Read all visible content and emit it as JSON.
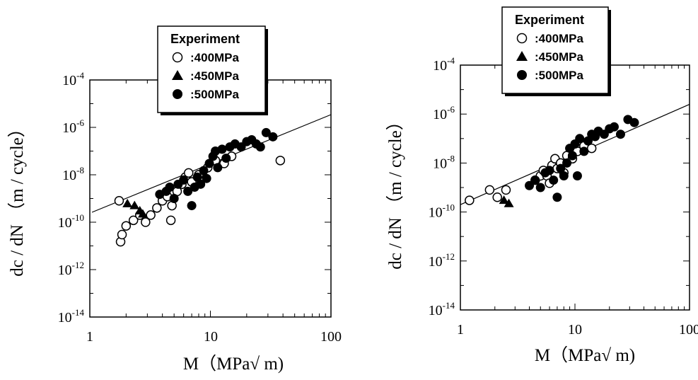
{
  "chart_data": [
    {
      "type": "scatter",
      "xlabel": "M（MPa√ m)",
      "ylabel": "dc / dN （m / cycle）",
      "x_scale": "log",
      "y_scale": "log",
      "xlim": [
        1,
        100
      ],
      "ylim": [
        1e-14,
        0.0001
      ],
      "x_ticks": [
        "1",
        "10",
        "100"
      ],
      "y_ticks": [
        {
          "base": "10",
          "exp": "-4",
          "value": 0.0001
        },
        {
          "base": "10",
          "exp": "-6",
          "value": 1e-06
        },
        {
          "base": "10",
          "exp": "-8",
          "value": 1e-08
        },
        {
          "base": "10",
          "exp": "-10",
          "value": 1e-10
        },
        {
          "base": "10",
          "exp": "-12",
          "value": 1e-12
        },
        {
          "base": "10",
          "exp": "-14",
          "value": 1e-14
        }
      ],
      "grid": false,
      "legend": {
        "title": "Experiment",
        "placement": "top-left"
      },
      "series": [
        {
          "name": ":400MPa",
          "marker": "open-circle",
          "points": [
            [
              1.75,
              8e-10
            ],
            [
              1.8,
              1.5e-11
            ],
            [
              1.85,
              3e-11
            ],
            [
              2.0,
              7e-11
            ],
            [
              2.3,
              1.2e-10
            ],
            [
              2.6,
              2e-10
            ],
            [
              2.9,
              1e-10
            ],
            [
              3.2,
              2e-10
            ],
            [
              3.6,
              4e-10
            ],
            [
              4.0,
              8e-10
            ],
            [
              4.4,
              1.2e-09
            ],
            [
              4.7,
              1.2e-10
            ],
            [
              4.8,
              5e-10
            ],
            [
              5.3,
              2e-09
            ],
            [
              5.8,
              4e-09
            ],
            [
              6.2,
              8e-09
            ],
            [
              6.6,
              1.2e-08
            ],
            [
              7.0,
              5e-09
            ],
            [
              8.0,
              1e-08
            ],
            [
              9.5,
              2e-08
            ],
            [
              11.0,
              4e-08
            ],
            [
              13.0,
              3e-08
            ],
            [
              15.0,
              6e-08
            ],
            [
              38.0,
              4e-08
            ]
          ]
        },
        {
          "name": ":450MPa",
          "marker": "filled-triangle",
          "points": [
            [
              2.05,
              6e-10
            ],
            [
              2.35,
              5e-10
            ],
            [
              2.6,
              3e-10
            ],
            [
              2.75,
              2.2e-10
            ]
          ]
        },
        {
          "name": ":500MPa",
          "marker": "filled-circle",
          "points": [
            [
              3.8,
              1.5e-09
            ],
            [
              4.3,
              2e-09
            ],
            [
              4.6,
              3e-09
            ],
            [
              5.0,
              1e-09
            ],
            [
              5.4,
              4e-09
            ],
            [
              6.0,
              6e-09
            ],
            [
              6.5,
              2e-09
            ],
            [
              7.0,
              5e-10
            ],
            [
              7.4,
              3e-09
            ],
            [
              7.8,
              8e-09
            ],
            [
              8.3,
              4e-09
            ],
            [
              8.8,
              1.5e-08
            ],
            [
              9.3,
              7e-09
            ],
            [
              9.8,
              3e-08
            ],
            [
              10.5,
              6e-08
            ],
            [
              11.0,
              1e-07
            ],
            [
              11.5,
              2e-08
            ],
            [
              12.5,
              1.2e-07
            ],
            [
              13.5,
              5e-08
            ],
            [
              14.5,
              1.5e-07
            ],
            [
              16.0,
              2e-07
            ],
            [
              18.0,
              1.5e-07
            ],
            [
              20.0,
              2.5e-07
            ],
            [
              22.0,
              3e-07
            ],
            [
              24.0,
              2e-07
            ],
            [
              26.0,
              1.5e-07
            ],
            [
              29.0,
              6e-07
            ],
            [
              33.0,
              4e-07
            ]
          ]
        }
      ],
      "fit_line": [
        [
          1.0,
          1.8e-10
        ],
        [
          100.0,
          3e-07
        ]
      ]
    },
    {
      "type": "scatter",
      "xlabel": "M（MPa√ m)",
      "ylabel": "dc / dN （m / cycle）",
      "x_scale": "log",
      "y_scale": "log",
      "xlim": [
        1,
        100
      ],
      "ylim": [
        1e-14,
        0.0001
      ],
      "x_ticks": [
        "1",
        "10",
        "100"
      ],
      "y_ticks": [
        {
          "base": "10",
          "exp": "-4",
          "value": 0.0001
        },
        {
          "base": "10",
          "exp": "-6",
          "value": 1e-06
        },
        {
          "base": "10",
          "exp": "-8",
          "value": 1e-08
        },
        {
          "base": "10",
          "exp": "-10",
          "value": 1e-10
        },
        {
          "base": "10",
          "exp": "-12",
          "value": 1e-12
        },
        {
          "base": "10",
          "exp": "-14",
          "value": 1e-14
        }
      ],
      "grid": false,
      "legend": {
        "title": "Experiment",
        "placement": "top-left"
      },
      "series": [
        {
          "name": ":400MPa",
          "marker": "open-circle",
          "points": [
            [
              1.2,
              3e-10
            ],
            [
              1.8,
              8e-10
            ],
            [
              2.1,
              4e-10
            ],
            [
              2.5,
              8e-10
            ],
            [
              4.5,
              2e-09
            ],
            [
              5.0,
              3e-09
            ],
            [
              5.3,
              5e-09
            ],
            [
              5.7,
              3e-09
            ],
            [
              6.0,
              1.5e-09
            ],
            [
              6.3,
              8e-09
            ],
            [
              6.7,
              1.5e-08
            ],
            [
              7.0,
              6e-09
            ],
            [
              7.5,
              1e-08
            ],
            [
              8.0,
              4e-09
            ],
            [
              8.5,
              2e-08
            ],
            [
              9.5,
              1.5e-08
            ],
            [
              10.5,
              3e-08
            ],
            [
              12.0,
              5e-08
            ],
            [
              14.0,
              4e-08
            ]
          ]
        },
        {
          "name": ":450MPa",
          "marker": "filled-triangle",
          "points": [
            [
              2.4,
              3e-10
            ],
            [
              2.65,
              2.2e-10
            ]
          ]
        },
        {
          "name": ":500MPa",
          "marker": "filled-circle",
          "points": [
            [
              4.0,
              1.2e-09
            ],
            [
              4.5,
              2e-09
            ],
            [
              5.0,
              1e-09
            ],
            [
              5.5,
              4e-09
            ],
            [
              6.0,
              5e-09
            ],
            [
              6.5,
              2e-09
            ],
            [
              7.0,
              4e-10
            ],
            [
              7.5,
              6e-09
            ],
            [
              8.0,
              3e-09
            ],
            [
              8.5,
              1e-08
            ],
            [
              9.0,
              4e-08
            ],
            [
              9.5,
              2e-08
            ],
            [
              10.0,
              6e-08
            ],
            [
              10.5,
              3e-09
            ],
            [
              11.0,
              1e-07
            ],
            [
              12.0,
              3e-08
            ],
            [
              13.0,
              8e-08
            ],
            [
              14.0,
              1.5e-07
            ],
            [
              15.0,
              1.2e-07
            ],
            [
              16.0,
              2e-07
            ],
            [
              18.0,
              1.5e-07
            ],
            [
              20.0,
              2.5e-07
            ],
            [
              22.0,
              3e-07
            ],
            [
              25.0,
              1.5e-07
            ],
            [
              29.0,
              6e-07
            ],
            [
              33.0,
              4.5e-07
            ]
          ]
        }
      ],
      "fit_line": [
        [
          1.0,
          2e-10
        ],
        [
          100.0,
          2.5e-06
        ]
      ]
    }
  ]
}
